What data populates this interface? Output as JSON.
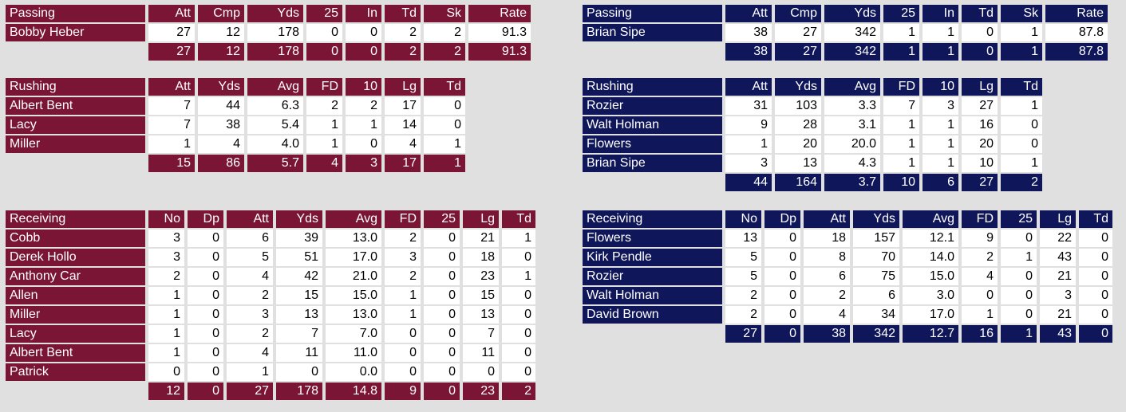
{
  "theme": {
    "home_color": "#7a1535",
    "away_color": "#0f175a",
    "cell_color": "#ffffff",
    "page_bg": "#e0e0e0"
  },
  "home": {
    "passing": {
      "title": "Passing",
      "headers": [
        "Att",
        "Cmp",
        "Yds",
        "25",
        "In",
        "Td",
        "Sk",
        "Rate"
      ],
      "rows": [
        {
          "name": "Bobby Heber",
          "vals": [
            "27",
            "12",
            "178",
            "0",
            "0",
            "2",
            "2",
            "91.3"
          ]
        }
      ],
      "totals": [
        "27",
        "12",
        "178",
        "0",
        "0",
        "2",
        "2",
        "91.3"
      ]
    },
    "rushing": {
      "title": "Rushing",
      "headers": [
        "Att",
        "Yds",
        "Avg",
        "FD",
        "10",
        "Lg",
        "Td"
      ],
      "rows": [
        {
          "name": "Albert Bent",
          "vals": [
            "7",
            "44",
            "6.3",
            "2",
            "2",
            "17",
            "0"
          ]
        },
        {
          "name": "Lacy",
          "vals": [
            "7",
            "38",
            "5.4",
            "1",
            "1",
            "14",
            "0"
          ]
        },
        {
          "name": "Miller",
          "vals": [
            "1",
            "4",
            "4.0",
            "1",
            "0",
            "4",
            "1"
          ]
        }
      ],
      "totals": [
        "15",
        "86",
        "5.7",
        "4",
        "3",
        "17",
        "1"
      ]
    },
    "receiving": {
      "title": "Receiving",
      "headers": [
        "No",
        "Dp",
        "Att",
        "Yds",
        "Avg",
        "FD",
        "25",
        "Lg",
        "Td"
      ],
      "rows": [
        {
          "name": "Cobb",
          "vals": [
            "3",
            "0",
            "6",
            "39",
            "13.0",
            "2",
            "0",
            "21",
            "1"
          ]
        },
        {
          "name": "Derek Hollo",
          "vals": [
            "3",
            "0",
            "5",
            "51",
            "17.0",
            "3",
            "0",
            "18",
            "0"
          ]
        },
        {
          "name": "Anthony Car",
          "vals": [
            "2",
            "0",
            "4",
            "42",
            "21.0",
            "2",
            "0",
            "23",
            "1"
          ]
        },
        {
          "name": "Allen",
          "vals": [
            "1",
            "0",
            "2",
            "15",
            "15.0",
            "1",
            "0",
            "15",
            "0"
          ]
        },
        {
          "name": "Miller",
          "vals": [
            "1",
            "0",
            "3",
            "13",
            "13.0",
            "1",
            "0",
            "13",
            "0"
          ]
        },
        {
          "name": "Lacy",
          "vals": [
            "1",
            "0",
            "2",
            "7",
            "7.0",
            "0",
            "0",
            "7",
            "0"
          ]
        },
        {
          "name": "Albert Bent",
          "vals": [
            "1",
            "0",
            "4",
            "11",
            "11.0",
            "0",
            "0",
            "11",
            "0"
          ]
        },
        {
          "name": "Patrick",
          "vals": [
            "0",
            "0",
            "1",
            "0",
            "0.0",
            "0",
            "0",
            "0",
            "0"
          ]
        }
      ],
      "totals": [
        "12",
        "0",
        "27",
        "178",
        "14.8",
        "9",
        "0",
        "23",
        "2"
      ]
    }
  },
  "away": {
    "passing": {
      "title": "Passing",
      "headers": [
        "Att",
        "Cmp",
        "Yds",
        "25",
        "In",
        "Td",
        "Sk",
        "Rate"
      ],
      "rows": [
        {
          "name": "Brian Sipe",
          "vals": [
            "38",
            "27",
            "342",
            "1",
            "1",
            "0",
            "1",
            "87.8"
          ]
        }
      ],
      "totals": [
        "38",
        "27",
        "342",
        "1",
        "1",
        "0",
        "1",
        "87.8"
      ]
    },
    "rushing": {
      "title": "Rushing",
      "headers": [
        "Att",
        "Yds",
        "Avg",
        "FD",
        "10",
        "Lg",
        "Td"
      ],
      "rows": [
        {
          "name": "Rozier",
          "vals": [
            "31",
            "103",
            "3.3",
            "7",
            "3",
            "27",
            "1"
          ]
        },
        {
          "name": "Walt Holman",
          "vals": [
            "9",
            "28",
            "3.1",
            "1",
            "1",
            "16",
            "0"
          ]
        },
        {
          "name": "Flowers",
          "vals": [
            "1",
            "20",
            "20.0",
            "1",
            "1",
            "20",
            "0"
          ]
        },
        {
          "name": "Brian Sipe",
          "vals": [
            "3",
            "13",
            "4.3",
            "1",
            "1",
            "10",
            "1"
          ]
        }
      ],
      "totals": [
        "44",
        "164",
        "3.7",
        "10",
        "6",
        "27",
        "2"
      ]
    },
    "receiving": {
      "title": "Receiving",
      "headers": [
        "No",
        "Dp",
        "Att",
        "Yds",
        "Avg",
        "FD",
        "25",
        "Lg",
        "Td"
      ],
      "rows": [
        {
          "name": "Flowers",
          "vals": [
            "13",
            "0",
            "18",
            "157",
            "12.1",
            "9",
            "0",
            "22",
            "0"
          ]
        },
        {
          "name": "Kirk Pendle",
          "vals": [
            "5",
            "0",
            "8",
            "70",
            "14.0",
            "2",
            "1",
            "43",
            "0"
          ]
        },
        {
          "name": "Rozier",
          "vals": [
            "5",
            "0",
            "6",
            "75",
            "15.0",
            "4",
            "0",
            "21",
            "0"
          ]
        },
        {
          "name": "Walt Holman",
          "vals": [
            "2",
            "0",
            "2",
            "6",
            "3.0",
            "0",
            "0",
            "3",
            "0"
          ]
        },
        {
          "name": "David Brown",
          "vals": [
            "2",
            "0",
            "4",
            "34",
            "17.0",
            "1",
            "0",
            "21",
            "0"
          ]
        }
      ],
      "totals": [
        "27",
        "0",
        "38",
        "342",
        "12.7",
        "16",
        "1",
        "43",
        "0"
      ]
    }
  }
}
